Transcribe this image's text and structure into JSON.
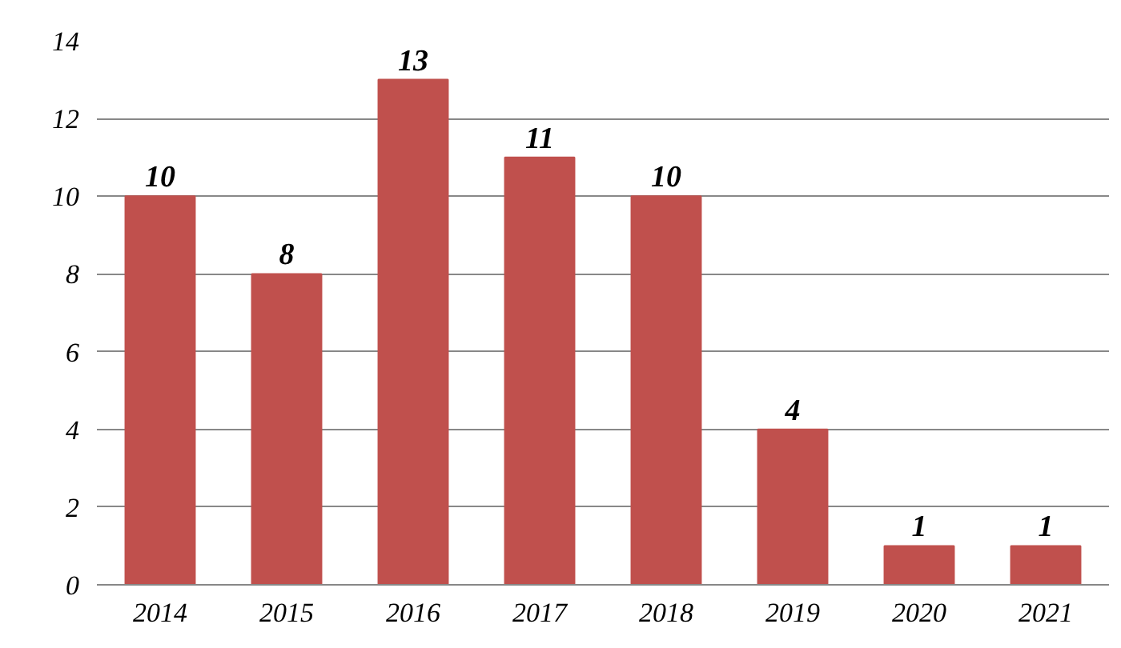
{
  "chart_data": {
    "type": "bar",
    "categories": [
      "2014",
      "2015",
      "2016",
      "2017",
      "2018",
      "2019",
      "2020",
      "2021"
    ],
    "values": [
      10,
      8,
      13,
      11,
      10,
      4,
      1,
      1
    ],
    "color": "#c0504d",
    "ylim": [
      0,
      14
    ],
    "yticks": [
      0,
      2,
      4,
      6,
      8,
      10,
      12,
      14
    ],
    "grid": "y",
    "data_labels": true
  }
}
